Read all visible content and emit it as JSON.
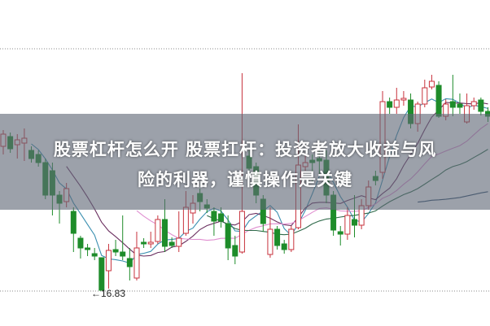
{
  "title": {
    "line1": "股票杠杆怎么开 股票扛杆：投资者放大收益与风",
    "line2": "险的利器，谨慎操作是关键"
  },
  "chart_data": {
    "type": "candlestick",
    "title": "",
    "xlabel": "",
    "ylabel": "",
    "grid": "dotted horizontal lines at top and bottom",
    "low_marker": {
      "label": "←16.83",
      "value": 16.83
    },
    "ohlc_fields": [
      "open",
      "high",
      "low",
      "close"
    ],
    "candles": [
      [
        18.6,
        18.8,
        18.5,
        18.75
      ],
      [
        18.72,
        18.77,
        18.52,
        18.57
      ],
      [
        18.62,
        18.75,
        18.45,
        18.68
      ],
      [
        18.64,
        18.82,
        18.42,
        18.7
      ],
      [
        18.55,
        18.6,
        18.4,
        18.45
      ],
      [
        18.5,
        18.55,
        18.35,
        18.4
      ],
      [
        18.4,
        18.45,
        17.95,
        18.0
      ],
      [
        18.3,
        18.4,
        17.75,
        18.0
      ],
      [
        18.0,
        18.05,
        17.65,
        17.9
      ],
      [
        17.92,
        18.15,
        17.85,
        18.08
      ],
      [
        17.8,
        17.85,
        17.3,
        17.53
      ],
      [
        17.47,
        17.5,
        17.22,
        17.35
      ],
      [
        17.35,
        17.4,
        17.25,
        17.33
      ],
      [
        17.28,
        17.35,
        17.2,
        17.25
      ],
      [
        17.23,
        17.23,
        16.83,
        16.83
      ],
      [
        17.07,
        17.4,
        16.85,
        17.32
      ],
      [
        17.33,
        17.45,
        17.25,
        17.3
      ],
      [
        17.3,
        17.75,
        17.2,
        17.25
      ],
      [
        17.22,
        17.35,
        16.95,
        17.12
      ],
      [
        16.98,
        17.55,
        16.95,
        17.35
      ],
      [
        17.42,
        17.47,
        17.35,
        17.4
      ],
      [
        17.4,
        17.55,
        17.35,
        17.42
      ],
      [
        17.43,
        17.75,
        17.4,
        17.7
      ],
      [
        17.7,
        17.95,
        17.3,
        17.37
      ],
      [
        17.42,
        17.48,
        17.35,
        17.38
      ],
      [
        17.37,
        17.8,
        17.3,
        17.47
      ],
      [
        17.53,
        18.05,
        17.5,
        17.85
      ],
      [
        17.78,
        18.0,
        17.65,
        17.9
      ],
      [
        18.02,
        18.08,
        17.8,
        17.92
      ],
      [
        17.88,
        17.95,
        17.78,
        17.84
      ],
      [
        17.8,
        17.85,
        17.5,
        17.68
      ],
      [
        17.77,
        17.85,
        17.6,
        17.68
      ],
      [
        17.65,
        17.75,
        17.2,
        17.35
      ],
      [
        17.38,
        17.5,
        17.15,
        17.25
      ],
      [
        17.3,
        19.5,
        17.28,
        17.8
      ],
      [
        18.48,
        18.55,
        18.25,
        18.33
      ],
      [
        18.35,
        18.4,
        17.9,
        18.0
      ],
      [
        17.95,
        18.0,
        17.55,
        17.65
      ],
      [
        17.27,
        17.85,
        17.23,
        17.58
      ],
      [
        17.58,
        17.62,
        17.33,
        17.38
      ],
      [
        17.4,
        17.45,
        17.28,
        17.33
      ],
      [
        17.33,
        17.62,
        17.3,
        17.58
      ],
      [
        17.6,
        18.87,
        17.58,
        18.37
      ],
      [
        18.35,
        18.5,
        18.3,
        18.4
      ],
      [
        18.43,
        18.5,
        18.15,
        18.4
      ],
      [
        18.45,
        18.55,
        18.25,
        18.42
      ],
      [
        18.43,
        18.55,
        17.9,
        18.0
      ],
      [
        18.0,
        18.05,
        17.5,
        17.57
      ],
      [
        17.55,
        17.62,
        17.38,
        17.52
      ],
      [
        17.52,
        17.85,
        17.45,
        17.75
      ],
      [
        17.7,
        18.0,
        17.48,
        17.63
      ],
      [
        17.63,
        17.95,
        17.58,
        17.87
      ],
      [
        17.87,
        18.18,
        17.82,
        18.1
      ],
      [
        18.23,
        18.3,
        18.12,
        18.18
      ],
      [
        18.28,
        19.28,
        18.2,
        19.15
      ],
      [
        19.15,
        19.2,
        19.0,
        19.08
      ],
      [
        19.08,
        19.32,
        19.0,
        19.17
      ],
      [
        19.17,
        19.28,
        19.1,
        19.19
      ],
      [
        19.17,
        19.25,
        18.82,
        18.88
      ],
      [
        18.88,
        19.15,
        18.78,
        19.12
      ],
      [
        19.12,
        19.42,
        19.08,
        19.32
      ],
      [
        19.33,
        19.48,
        19.3,
        19.4
      ],
      [
        19.35,
        19.4,
        18.95,
        18.97
      ],
      [
        18.97,
        19.18,
        18.92,
        19.12
      ],
      [
        19.15,
        19.48,
        18.97,
        19.08
      ],
      [
        19.12,
        19.25,
        19.0,
        19.08
      ],
      [
        18.9,
        19.25,
        18.88,
        19.1
      ],
      [
        19.1,
        19.2,
        19.05,
        19.15
      ],
      [
        19.17,
        19.2,
        18.98,
        19.03
      ],
      [
        19.03,
        19.08,
        18.9,
        18.97
      ]
    ],
    "moving_averages": [
      {
        "period": 5,
        "color": "#3a8fb0"
      },
      {
        "period": 10,
        "color": "#6b3060"
      },
      {
        "period": 20,
        "color": "#e08fd0"
      },
      {
        "period": 30,
        "color": "#2f6a4a"
      },
      {
        "period": 60,
        "color": "#2c4a6a"
      }
    ],
    "colors": {
      "up": "#c8323c",
      "down": "#1e8c2a",
      "grid": "#888888"
    }
  }
}
